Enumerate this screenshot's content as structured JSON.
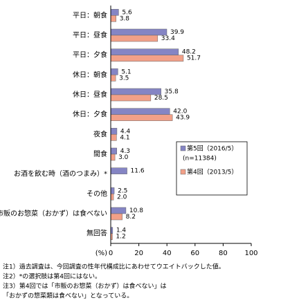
{
  "chart_data": {
    "type": "bar",
    "orientation": "horizontal",
    "categories": [
      "平日：朝食",
      "平日：昼食",
      "平日：夕食",
      "休日：朝食",
      "休日：昼食",
      "休日：夕食",
      "夜食",
      "間食",
      "お酒を飲む時（酒のつまみ）*",
      "その他",
      "市販のお惣菜（おかず）は食べない",
      "無回答"
    ],
    "series": [
      {
        "name": "第5回（2016/5）",
        "note": "(n=11384)",
        "color": "#8585c4",
        "values": [
          5.6,
          39.9,
          48.2,
          5.1,
          35.8,
          42.0,
          4.4,
          4.3,
          11.6,
          2.5,
          10.8,
          1.4
        ],
        "value_labels": [
          "5.6",
          "39.9",
          "48.2",
          "5.1",
          "35.8",
          "42.0",
          "4.4",
          "4.3",
          "11.6",
          "2.5",
          "10.8",
          "1.4"
        ]
      },
      {
        "name": "第4回（2013/5）",
        "color": "#f2a088",
        "values": [
          3.8,
          33.4,
          51.7,
          3.5,
          28.5,
          43.9,
          4.1,
          3.0,
          null,
          2.0,
          8.2,
          1.2
        ],
        "value_labels": [
          "3.8",
          "33.4",
          "51.7",
          "3.5",
          "28.5",
          "43.9",
          "4.1",
          "3.0",
          null,
          "2.0",
          "8.2",
          "1.2"
        ]
      }
    ],
    "x_label": "(%)",
    "xlim": [
      0,
      100
    ],
    "xticks": [
      0,
      20,
      40,
      60,
      80,
      100
    ],
    "notes": [
      "注1）過去調査は、今回調査の性年代構成比にあわせてウエイトバックした値。",
      "注2）*の選択肢は第4回にはない。",
      "注3）第4回では「市販のお惣菜（おかず）は食べない」は",
      "「おかずの惣菜類は食べない」となっている。"
    ]
  }
}
